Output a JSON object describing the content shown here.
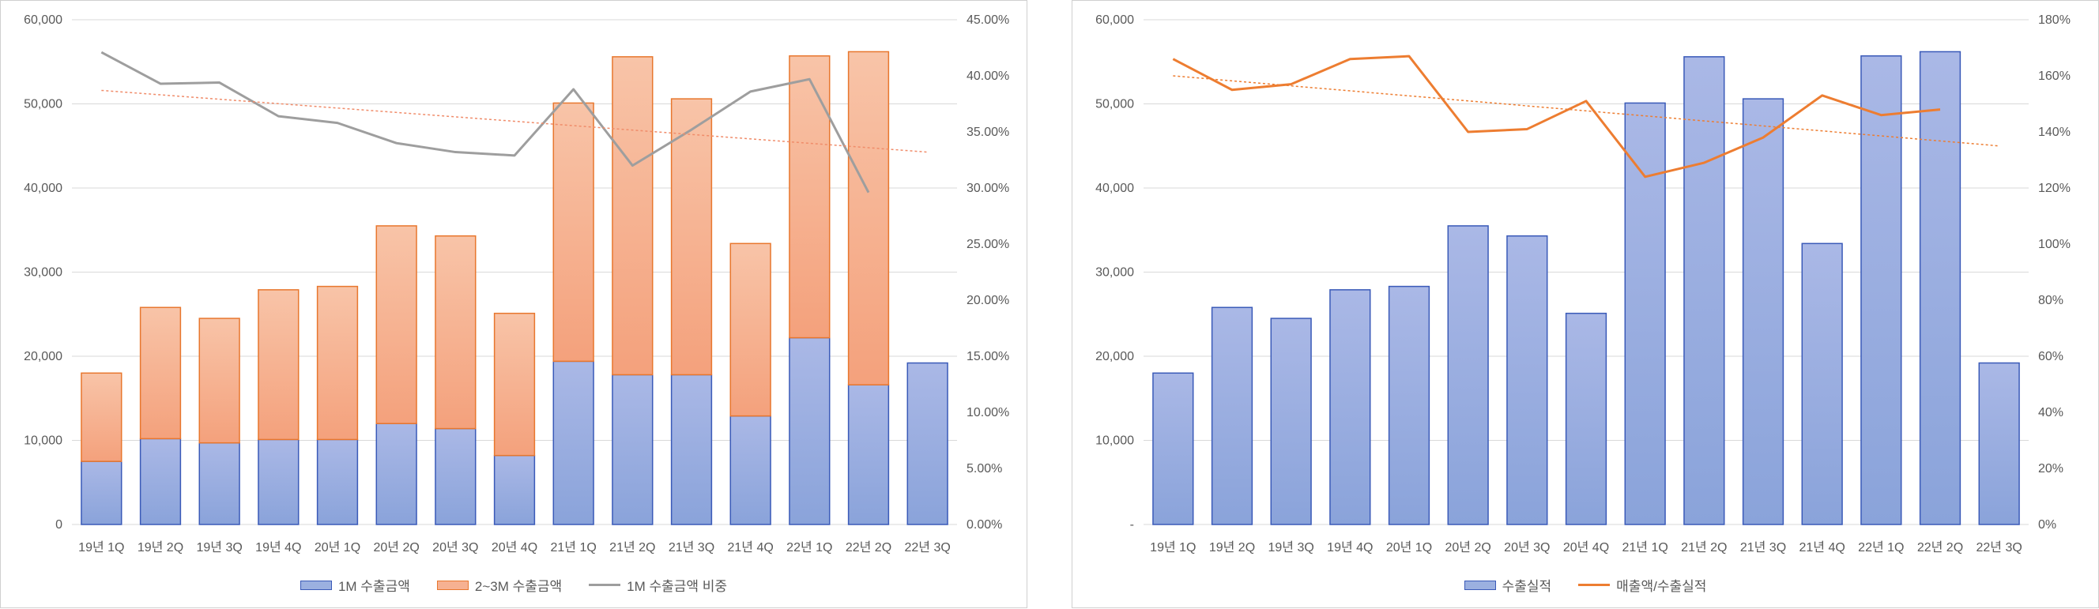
{
  "colors": {
    "bar_blue_top": "#aab8e6",
    "bar_blue_bottom": "#8aa3da",
    "bar_blue_stroke": "#3a5ab8",
    "bar_orange_top": "#f8c4a8",
    "bar_orange_bottom": "#f4a17c",
    "bar_orange_stroke": "#e8772e",
    "grey_line": "#9e9e9e",
    "orange_line": "#ed7d31",
    "grid": "#d9d9d9"
  },
  "chart_data": [
    {
      "type": "bar",
      "stacked": true,
      "categories": [
        "19년 1Q",
        "19년 2Q",
        "19년 3Q",
        "19년 4Q",
        "20년 1Q",
        "20년 2Q",
        "20년 3Q",
        "20년 4Q",
        "21년 1Q",
        "21년 2Q",
        "21년 3Q",
        "21년 4Q",
        "22년 1Q",
        "22년 2Q",
        "22년 3Q"
      ],
      "ylim": [
        0,
        60000
      ],
      "y_ticks": [
        "0",
        "10,000",
        "20,000",
        "30,000",
        "40,000",
        "50,000",
        "60,000"
      ],
      "y2lim": [
        0,
        45
      ],
      "y2_ticks": [
        "0.00%",
        "5.00%",
        "10.00%",
        "15.00%",
        "20.00%",
        "25.00%",
        "30.00%",
        "35.00%",
        "40.00%",
        "45.00%"
      ],
      "series": [
        {
          "name": "1M 수출금액",
          "kind": "bar",
          "values": [
            7500,
            10200,
            9700,
            10100,
            10100,
            12000,
            11400,
            8200,
            19400,
            17800,
            17800,
            12900,
            22200,
            16600,
            19200
          ]
        },
        {
          "name": "2~3M 수출금액",
          "kind": "bar",
          "values": [
            10500,
            15600,
            14800,
            17800,
            18200,
            23500,
            22900,
            16900,
            30700,
            37800,
            32800,
            20500,
            33500,
            39600,
            null
          ]
        },
        {
          "name": "1M 수출금액 비중",
          "kind": "line",
          "axis": "right",
          "values": [
            42.1,
            39.3,
            39.4,
            36.4,
            35.8,
            34.0,
            33.2,
            32.9,
            38.8,
            32.0,
            35.2,
            38.6,
            39.7,
            29.6,
            null
          ],
          "trendline": [
            38.7,
            33.2
          ]
        }
      ],
      "legend_position": "bottom",
      "grid": true
    },
    {
      "type": "bar",
      "categories": [
        "19년 1Q",
        "19년 2Q",
        "19년 3Q",
        "19년 4Q",
        "20년 1Q",
        "20년 2Q",
        "20년 3Q",
        "20년 4Q",
        "21년 1Q",
        "21년 2Q",
        "21년 3Q",
        "21년 4Q",
        "22년 1Q",
        "22년 2Q",
        "22년 3Q"
      ],
      "ylim": [
        0,
        60000
      ],
      "y_ticks": [
        "-",
        "10,000",
        "20,000",
        "30,000",
        "40,000",
        "50,000",
        "60,000"
      ],
      "y2lim": [
        0,
        180
      ],
      "y2_ticks": [
        "0%",
        "20%",
        "40%",
        "60%",
        "80%",
        "100%",
        "120%",
        "140%",
        "160%",
        "180%"
      ],
      "series": [
        {
          "name": "수출실적",
          "kind": "bar",
          "values": [
            18000,
            25800,
            24500,
            27900,
            28300,
            35500,
            34300,
            25100,
            50100,
            55600,
            50600,
            33400,
            55700,
            56200,
            19200
          ]
        },
        {
          "name": "매출액/수출실적",
          "kind": "line",
          "axis": "right",
          "values": [
            166,
            155,
            157,
            166,
            167,
            140,
            141,
            151,
            124,
            129,
            138,
            153,
            146,
            148,
            null
          ],
          "trendline": [
            160,
            135
          ]
        }
      ],
      "legend_position": "bottom",
      "grid": true
    }
  ]
}
